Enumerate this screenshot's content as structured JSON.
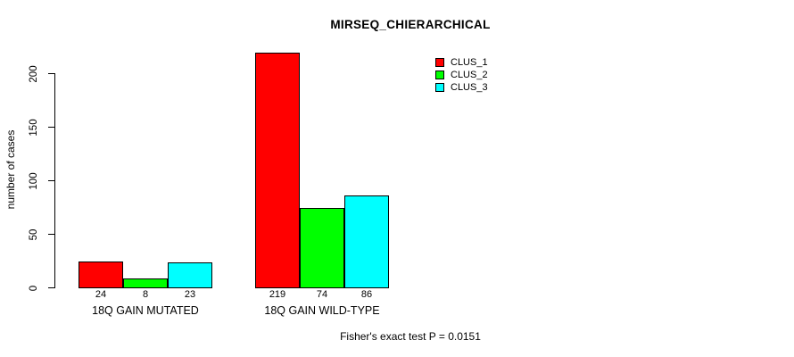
{
  "chart_data": {
    "type": "bar",
    "title": "MIRSEQ_CHIERARCHICAL",
    "ylabel": "number of cases",
    "xlabel": "",
    "categories": [
      "18Q GAIN MUTATED",
      "18Q GAIN WILD-TYPE"
    ],
    "series": [
      {
        "name": "CLUS_1",
        "color": "#FF0000",
        "values": [
          24,
          219
        ]
      },
      {
        "name": "CLUS_2",
        "color": "#00FF00",
        "values": [
          8,
          74
        ]
      },
      {
        "name": "CLUS_3",
        "color": "#00FFFF",
        "values": [
          23,
          86
        ]
      }
    ],
    "bar_value_labels": [
      [
        24,
        8,
        23
      ],
      [
        219,
        74,
        86
      ]
    ],
    "yticks": [
      0,
      50,
      100,
      150,
      200
    ],
    "ylim": [
      0,
      220
    ],
    "grid": false,
    "legend_position": "top-right",
    "legend_entries": [
      "CLUS_1",
      "CLUS_2",
      "CLUS_3"
    ],
    "footer": "Fisher's exact test P = 0.0151"
  },
  "colors": {
    "background": "#FFFFFF",
    "text": "#000000",
    "bar_border": "#000000",
    "clus_1": "#FF0000",
    "clus_2": "#00FF00",
    "clus_3": "#00FFFF"
  }
}
